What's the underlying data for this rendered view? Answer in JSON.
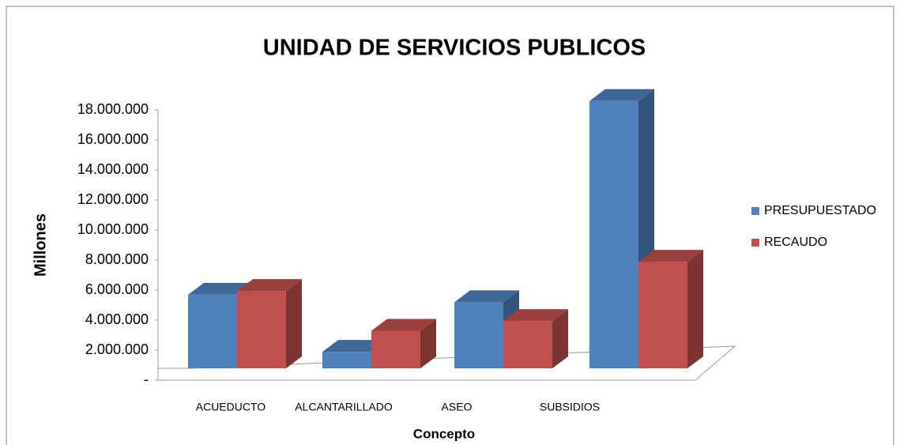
{
  "chart_data": {
    "type": "bar3d",
    "title": "UNIDAD DE SERVICIOS PUBLICOS",
    "x_label": "Concepto",
    "y_label": "Millones",
    "categories": [
      "ACUEDUCTO",
      "ALCANTARILLADO",
      "ASEO",
      "SUBSIDIOS"
    ],
    "series": [
      {
        "name": "PRESUPUESTADO",
        "color": "#4f81bd",
        "values": [
          4900000,
          1100000,
          4400000,
          17800000
        ]
      },
      {
        "name": "RECAUDO",
        "color": "#c0504d",
        "values": [
          5150000,
          2500000,
          3150000,
          7100000
        ]
      }
    ],
    "ylim": [
      0,
      18000000
    ],
    "yticks": [
      {
        "value": 0,
        "label": "-"
      },
      {
        "value": 2000000,
        "label": "2.000.000"
      },
      {
        "value": 4000000,
        "label": "4.000.000"
      },
      {
        "value": 6000000,
        "label": "6.000.000"
      },
      {
        "value": 8000000,
        "label": "8.000.000"
      },
      {
        "value": 10000000,
        "label": "10.000.000"
      },
      {
        "value": 12000000,
        "label": "12.000.000"
      },
      {
        "value": 14000000,
        "label": "14.000.000"
      },
      {
        "value": 16000000,
        "label": "16.000.000"
      },
      {
        "value": 18000000,
        "label": "18.000.000"
      }
    ],
    "legend": "right"
  }
}
